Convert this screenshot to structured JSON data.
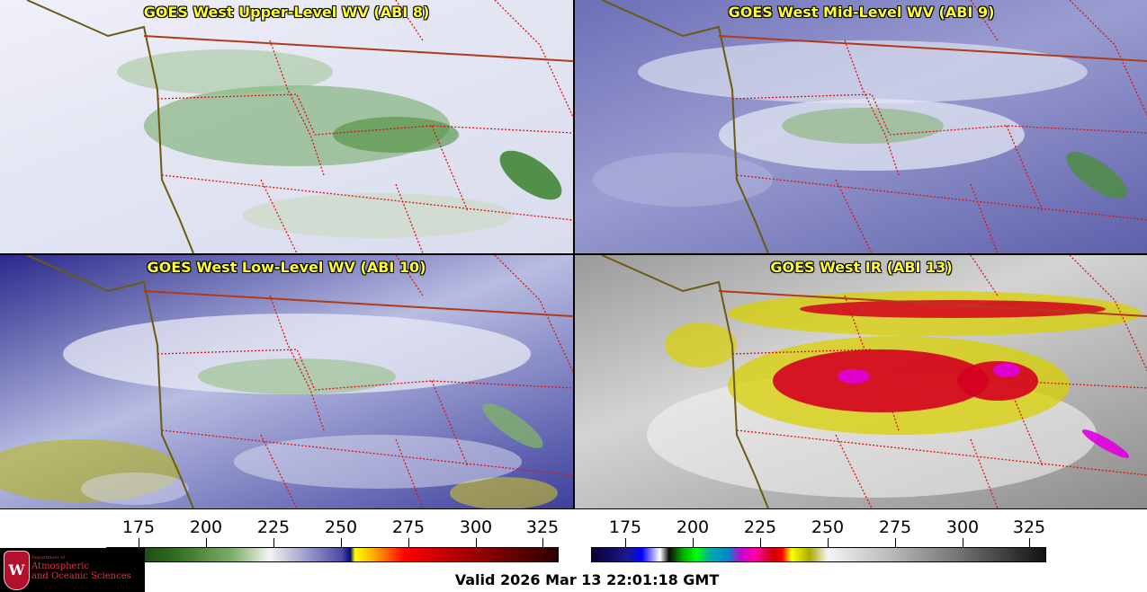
{
  "panels": [
    {
      "title": "GOES West Upper-Level WV (ABI 8)",
      "dominant_colors": [
        "#f0f0fa",
        "#5d9a4a",
        "#2f7a22"
      ]
    },
    {
      "title": "GOES West Mid-Level WV (ABI 9)",
      "dominant_colors": [
        "#6d6fb8",
        "#e8e8f4",
        "#5d9a4a"
      ]
    },
    {
      "title": "GOES West Low-Level WV (ABI 10)",
      "dominant_colors": [
        "#2a2a8c",
        "#b8bde2",
        "#b5b51c"
      ]
    },
    {
      "title": "GOES West IR (ABI 13)",
      "dominant_colors": [
        "#b0b0b0",
        "#d40020",
        "#e0d000",
        "#e000e0"
      ]
    }
  ],
  "colorbars": {
    "left": {
      "ticks": [
        "175",
        "200",
        "225",
        "250",
        "275",
        "300",
        "325"
      ]
    },
    "right": {
      "ticks": [
        "175",
        "200",
        "225",
        "250",
        "275",
        "300",
        "325"
      ]
    }
  },
  "logo": {
    "small_text": "Department of",
    "line1": "Atmospheric",
    "line2": "and Oceanic Sciences",
    "shield_letter": "W",
    "text_color": "#e8333f"
  },
  "footer": {
    "valid": "Valid 2026 Mar 13 22:01:18 GMT"
  },
  "map_line_colors": {
    "coast": "#6b5a10",
    "border": "#b03a1a",
    "state": "#e01010"
  }
}
